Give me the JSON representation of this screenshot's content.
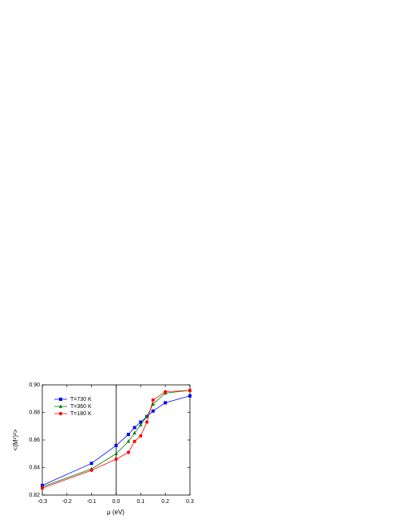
{
  "chart_data": {
    "type": "line",
    "xlabel": "μ (eV)",
    "ylabel": "<(Mᶻ)²>",
    "x": [
      -0.3,
      -0.1,
      0,
      0.05,
      0.075,
      0.1,
      0.125,
      0.15,
      0.2,
      0.3
    ],
    "series": [
      {
        "name": "T=730 K",
        "color": "#0000ff",
        "marker": "square",
        "values": [
          0.827,
          0.843,
          0.856,
          0.864,
          0.869,
          0.873,
          0.877,
          0.881,
          0.887,
          0.892
        ]
      },
      {
        "name": "T=360 K",
        "color": "#008000",
        "marker": "triangle",
        "values": [
          0.826,
          0.839,
          0.85,
          0.859,
          0.865,
          0.871,
          0.877,
          0.886,
          0.894,
          0.896
        ]
      },
      {
        "name": "T=180 K",
        "color": "#ff0000",
        "marker": "circle",
        "values": [
          0.825,
          0.838,
          0.846,
          0.851,
          0.859,
          0.863,
          0.873,
          0.889,
          0.895,
          0.896
        ]
      }
    ],
    "xlim": [
      -0.3,
      0.3
    ],
    "xticks": [
      -0.3,
      -0.2,
      -0.1,
      {
        "value": 0,
        "label": "0.0"
      },
      0.1,
      0.2,
      0.3
    ],
    "ylim": [
      0.82,
      0.9
    ],
    "yticks": [
      0.82,
      0.84,
      0.86,
      0.88,
      {
        "value": 0.9,
        "label": "0.90"
      }
    ],
    "vline_x": 0,
    "legend": "upper-left"
  }
}
